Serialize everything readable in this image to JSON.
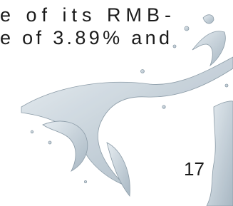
{
  "text": {
    "lines": [
      "e of its RMB-",
      "e of 3.89% and"
    ]
  },
  "page_number": "17"
}
